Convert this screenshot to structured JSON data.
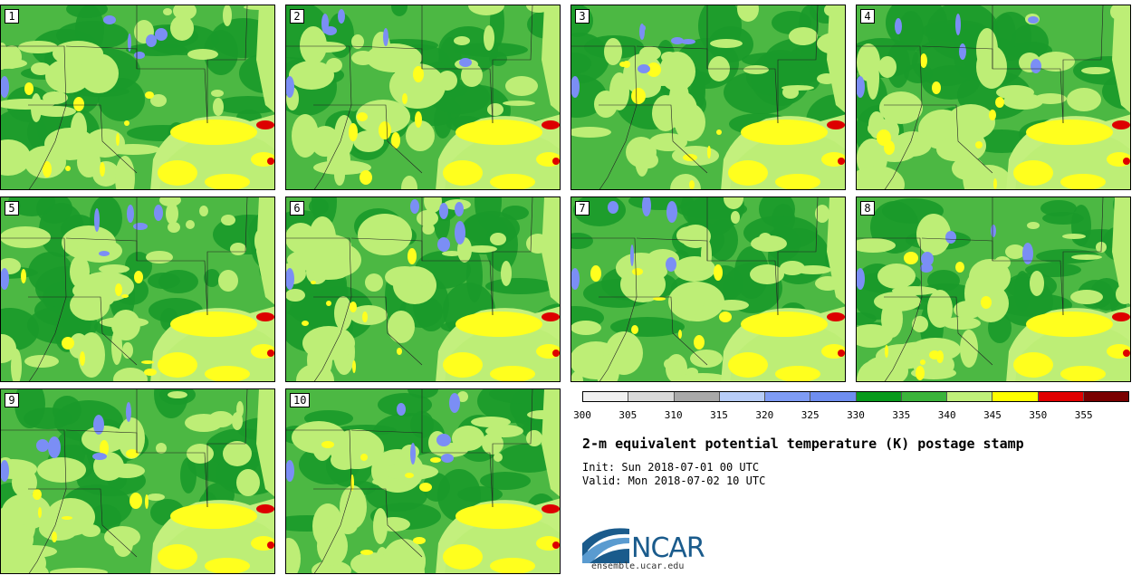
{
  "panels": [
    {
      "label": "1"
    },
    {
      "label": "2"
    },
    {
      "label": "3"
    },
    {
      "label": "4"
    },
    {
      "label": "5"
    },
    {
      "label": "6"
    },
    {
      "label": "7"
    },
    {
      "label": "8"
    },
    {
      "label": "9"
    },
    {
      "label": "10"
    }
  ],
  "colorbar": {
    "colors": [
      "#f0f0f0",
      "#d9d9d9",
      "#a9a9a9",
      "#b8cdf8",
      "#7f9cf5",
      "#6f8ef0",
      "#089a1c",
      "#3bb43b",
      "#c0f07a",
      "#ffff00",
      "#e00000",
      "#7a0000"
    ],
    "ticks": [
      "300",
      "305",
      "310",
      "315",
      "320",
      "325",
      "330",
      "335",
      "340",
      "345",
      "350",
      "355"
    ]
  },
  "title": "2-m equivalent potential temperature (K) postage stamp",
  "init": "Init: Sun 2018-07-01 00 UTC",
  "valid": "Valid: Mon 2018-07-02 10 UTC",
  "logo": {
    "text": "NCAR",
    "site": "ensemble.ucar.edu"
  },
  "palette": {
    "dark_green": "#1a9a2a",
    "mid_green": "#4cb843",
    "light_green": "#bdee76",
    "yellow": "#ffff1e",
    "red": "#dd0000",
    "blue": "#7b8ef5",
    "ocean": "#c3f07d"
  }
}
